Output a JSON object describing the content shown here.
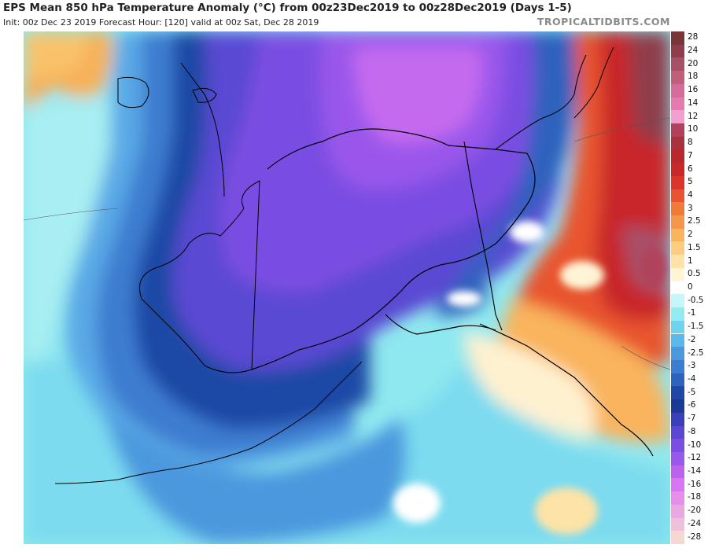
{
  "header": {
    "title": "EPS Mean 850 hPa Temperature Anomaly (°C) from 00z23Dec2019 to 00z28Dec2019 (Days 1-5)",
    "subtitle": "Init: 00z Dec 23 2019   Forecast Hour: [120]   valid at 00z Sat, Dec 28 2019",
    "brand": "TROPICALTIDBITS.COM"
  },
  "legend": {
    "items": [
      {
        "label": "28",
        "color": "#7a3636"
      },
      {
        "label": "24",
        "color": "#8f3c4c"
      },
      {
        "label": "20",
        "color": "#a85067"
      },
      {
        "label": "18",
        "color": "#bf5f7d"
      },
      {
        "label": "16",
        "color": "#d46b98"
      },
      {
        "label": "14",
        "color": "#e47ab0"
      },
      {
        "label": "12",
        "color": "#f29fd0"
      },
      {
        "label": "10",
        "color": "#b1425b"
      },
      {
        "label": "8",
        "color": "#a8323e"
      },
      {
        "label": "7",
        "color": "#b8282c"
      },
      {
        "label": "6",
        "color": "#c8282a"
      },
      {
        "label": "5",
        "color": "#da342b"
      },
      {
        "label": "4",
        "color": "#e8542f"
      },
      {
        "label": "3",
        "color": "#f07a38"
      },
      {
        "label": "2.5",
        "color": "#f5974a"
      },
      {
        "label": "2",
        "color": "#f9b45d"
      },
      {
        "label": "1.5",
        "color": "#fbcd7e"
      },
      {
        "label": "1",
        "color": "#fde3a7"
      },
      {
        "label": "0.5",
        "color": "#fef5d6"
      },
      {
        "label": "0",
        "color": "#ffffff"
      },
      {
        "label": "-0.5",
        "color": "#c4f7f7"
      },
      {
        "label": "-1",
        "color": "#93ecef"
      },
      {
        "label": "-1.5",
        "color": "#6fd3f0"
      },
      {
        "label": "-2",
        "color": "#5cb7ea"
      },
      {
        "label": "-2.5",
        "color": "#4b98de"
      },
      {
        "label": "-3",
        "color": "#3d7dd0"
      },
      {
        "label": "-4",
        "color": "#2e62bd"
      },
      {
        "label": "-5",
        "color": "#1f48a6"
      },
      {
        "label": "-6",
        "color": "#1a3a96"
      },
      {
        "label": "-7",
        "color": "#3a3fba"
      },
      {
        "label": "-8",
        "color": "#5a48d3"
      },
      {
        "label": "-10",
        "color": "#7a4ee2"
      },
      {
        "label": "-12",
        "color": "#9a57eb"
      },
      {
        "label": "-14",
        "color": "#bb63ef"
      },
      {
        "label": "-16",
        "color": "#d775f2"
      },
      {
        "label": "-18",
        "color": "#e48fe9"
      },
      {
        "label": "-20",
        "color": "#eaa8e2"
      },
      {
        "label": "-24",
        "color": "#efc0dc"
      },
      {
        "label": "-28",
        "color": "#f5d8cf"
      }
    ]
  }
}
